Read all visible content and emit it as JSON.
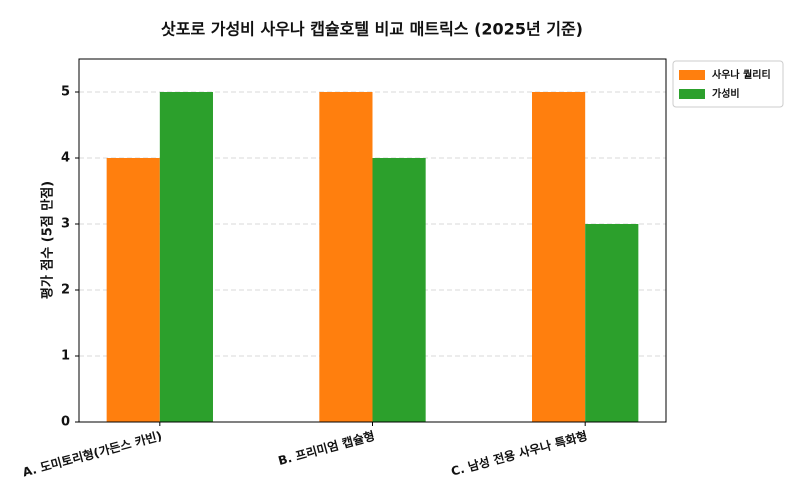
{
  "chart_data": {
    "type": "bar",
    "title": "삿포로 가성비 사우나 캡슐호텔 비교 매트릭스 (2025년 기준)",
    "y_label": "평가 점수 (5점 만점)",
    "categories": [
      "A. 도미토리형(가든스 카빈)",
      "B. 프리미엄 캡슐형",
      "C. 남성 전용 사우나 특화형"
    ],
    "series": [
      {
        "name": "사우나 퀄리티",
        "color": "#ff7f0e",
        "values": [
          4,
          5,
          5
        ]
      },
      {
        "name": "가성비",
        "color": "#2ca02c",
        "values": [
          5,
          4,
          3
        ]
      }
    ],
    "ylim": [
      0,
      5.5
    ],
    "yticks": [
      0,
      1,
      2,
      3,
      4,
      5
    ],
    "grid": true,
    "legend": "upper-right-outside"
  }
}
